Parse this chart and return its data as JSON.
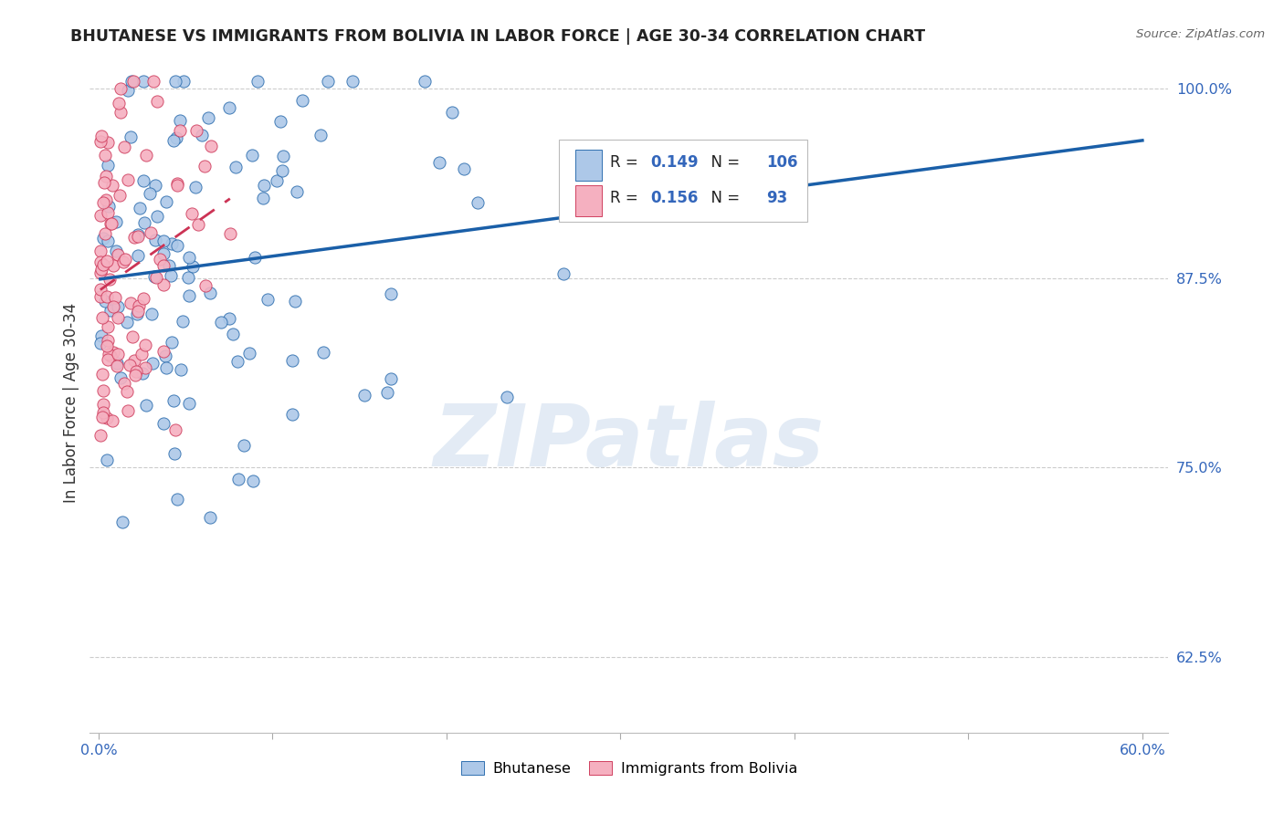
{
  "title": "BHUTANESE VS IMMIGRANTS FROM BOLIVIA IN LABOR FORCE | AGE 30-34 CORRELATION CHART",
  "source": "Source: ZipAtlas.com",
  "ylabel": "In Labor Force | Age 30-34",
  "legend_label1": "Bhutanese",
  "legend_label2": "Immigrants from Bolivia",
  "R1": 0.149,
  "N1": 106,
  "R2": 0.156,
  "N2": 93,
  "xlim": [
    -0.005,
    0.615
  ],
  "ylim": [
    0.575,
    1.01
  ],
  "yticks": [
    0.625,
    0.75,
    0.875,
    1.0
  ],
  "ytick_labels": [
    "62.5%",
    "75.0%",
    "87.5%",
    "100.0%"
  ],
  "xticks": [
    0.0,
    0.1,
    0.2,
    0.3,
    0.4,
    0.5,
    0.6
  ],
  "xtick_labels": [
    "0.0%",
    "",
    "",
    "",
    "",
    "",
    "60.0%"
  ],
  "color1": "#adc8e8",
  "color2": "#f5b0c0",
  "edge_color1": "#3070b0",
  "edge_color2": "#d04060",
  "trend_color1": "#1a5fa8",
  "trend_color2": "#cc3355",
  "background_color": "#ffffff",
  "watermark": "ZIPatlas",
  "grid_color": "#cccccc",
  "tick_color": "#3366bb"
}
